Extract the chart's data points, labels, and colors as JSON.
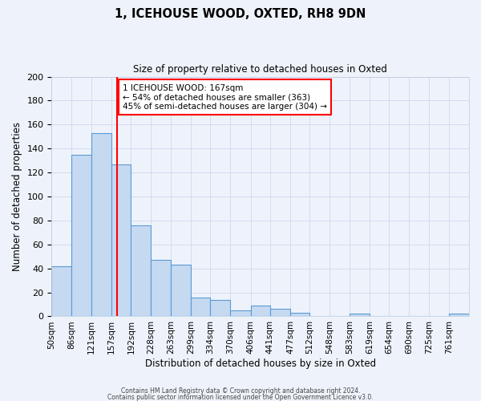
{
  "title": "1, ICEHOUSE WOOD, OXTED, RH8 9DN",
  "subtitle": "Size of property relative to detached houses in Oxted",
  "xlabel": "Distribution of detached houses by size in Oxted",
  "ylabel": "Number of detached properties",
  "bar_color": "#C5D9F1",
  "bar_edge_color": "#5B9BD5",
  "vline_x": 167,
  "vline_color": "red",
  "annotation_title": "1 ICEHOUSE WOOD: 167sqm",
  "annotation_line1": "← 54% of detached houses are smaller (363)",
  "annotation_line2": "45% of semi-detached houses are larger (304) →",
  "ylim": [
    0,
    200
  ],
  "yticks": [
    0,
    20,
    40,
    60,
    80,
    100,
    120,
    140,
    160,
    180,
    200
  ],
  "categories": [
    "50sqm",
    "86sqm",
    "121sqm",
    "157sqm",
    "192sqm",
    "228sqm",
    "263sqm",
    "299sqm",
    "334sqm",
    "370sqm",
    "406sqm",
    "441sqm",
    "477sqm",
    "512sqm",
    "548sqm",
    "583sqm",
    "619sqm",
    "654sqm",
    "690sqm",
    "725sqm",
    "761sqm"
  ],
  "bin_edges": [
    50,
    86,
    121,
    157,
    192,
    228,
    263,
    299,
    334,
    370,
    406,
    441,
    477,
    512,
    548,
    583,
    619,
    654,
    690,
    725,
    761,
    797
  ],
  "values": [
    42,
    135,
    153,
    127,
    76,
    47,
    43,
    16,
    14,
    5,
    9,
    6,
    3,
    0,
    0,
    2,
    0,
    0,
    0,
    0,
    2
  ],
  "grid_color": "#D0DCF0",
  "bg_color": "#EEF3FB",
  "footer1": "Contains HM Land Registry data © Crown copyright and database right 2024.",
  "footer2": "Contains public sector information licensed under the Open Government Licence v3.0."
}
